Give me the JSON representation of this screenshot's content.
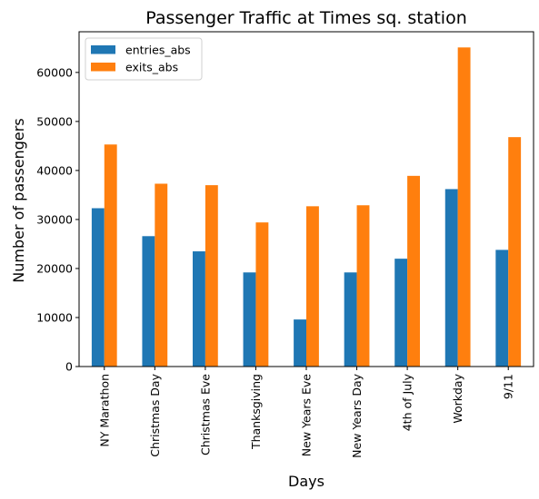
{
  "chart_data": {
    "type": "bar",
    "title": "Passenger Traffic at Times sq. station",
    "xlabel": "Days",
    "ylabel": "Number of passengers",
    "categories": [
      "NY Marathon",
      "Christmas Day",
      "Christmas Eve",
      "Thanksgiving",
      "New Years Eve",
      "New Years Day",
      "4th of July",
      "Workday",
      "9/11"
    ],
    "series": [
      {
        "name": "entries_abs",
        "color": "#1f77b4",
        "values": [
          32300,
          26600,
          23500,
          19200,
          9600,
          19200,
          22000,
          36200,
          23800
        ]
      },
      {
        "name": "exits_abs",
        "color": "#ff7f0e",
        "values": [
          45300,
          37300,
          37000,
          29400,
          32700,
          32900,
          38900,
          65100,
          46800
        ]
      }
    ],
    "ylim": [
      0,
      68300
    ],
    "yticks": [
      0,
      10000,
      20000,
      30000,
      40000,
      50000,
      60000
    ],
    "grid": false,
    "legend_position": "top-left"
  }
}
